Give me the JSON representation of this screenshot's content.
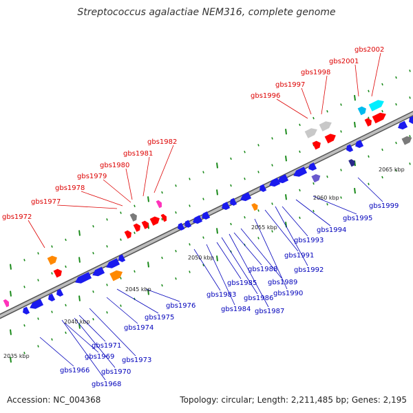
{
  "title": "Streptococcus agalactiae NEM316, complete genome",
  "footer": {
    "accession": "Accession: NC_004368",
    "topology": "Topology: circular; Length: 2,211,485 bp; Genes: 2,195"
  },
  "colors": {
    "backbone": "#8c8c8c",
    "label_red": "#dd0000",
    "label_blue": "#0000bb",
    "tick_green": "#1a8a1a"
  },
  "scale_labels": [
    "2035 kbp",
    "2040 kbp",
    "2045 kbp",
    "2050 kbp",
    "2055 kbp",
    "2060 kbp",
    "2065 kbp"
  ],
  "genes_top": [
    {
      "name": "gbs1972",
      "color": "#ff8800"
    },
    {
      "name": "gbs1977",
      "color": "#808080"
    },
    {
      "name": "gbs1978",
      "color": "#ff0000"
    },
    {
      "name": "gbs1979",
      "color": "#ff0000"
    },
    {
      "name": "gbs1980",
      "color": "#ff0000"
    },
    {
      "name": "gbs1981",
      "color": "#ff0000"
    },
    {
      "name": "gbs1982",
      "color": "#ff00aa"
    },
    {
      "name": "gbs1996",
      "color": "#c0c0c0"
    },
    {
      "name": "gbs1997",
      "color": "#ff0000"
    },
    {
      "name": "gbs1998",
      "color": "#c0c0c0"
    },
    {
      "name": "gbs2001",
      "color": "#00bbee"
    },
    {
      "name": "gbs2002",
      "color": "#00ddff"
    }
  ],
  "genes_bottom": [
    {
      "name": "gbs1966"
    },
    {
      "name": "gbs1968"
    },
    {
      "name": "gbs1969"
    },
    {
      "name": "gbs1970"
    },
    {
      "name": "gbs1971"
    },
    {
      "name": "gbs1973"
    },
    {
      "name": "gbs1974"
    },
    {
      "name": "gbs1975"
    },
    {
      "name": "gbs1976"
    },
    {
      "name": "gbs1983"
    },
    {
      "name": "gbs1984"
    },
    {
      "name": "gbs1985"
    },
    {
      "name": "gbs1986"
    },
    {
      "name": "gbs1987"
    },
    {
      "name": "gbs1988"
    },
    {
      "name": "gbs1989"
    },
    {
      "name": "gbs1990"
    },
    {
      "name": "gbs1991"
    },
    {
      "name": "gbs1992"
    },
    {
      "name": "gbs1993"
    },
    {
      "name": "gbs1994"
    },
    {
      "name": "gbs1995"
    },
    {
      "name": "gbs1999"
    }
  ]
}
